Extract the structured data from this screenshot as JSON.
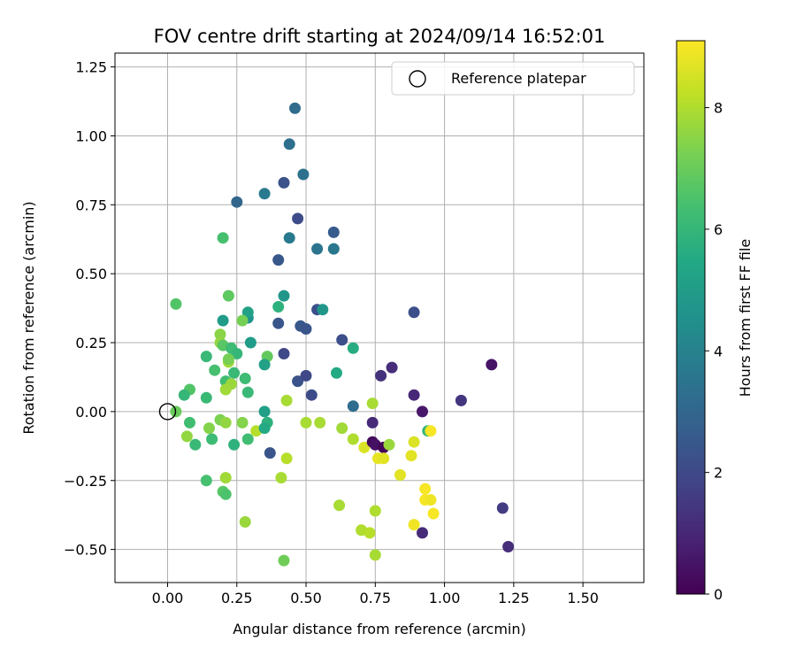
{
  "chart_data": {
    "type": "scatter",
    "title": "FOV centre drift starting at 2024/09/14 16:52:01",
    "xlabel": "Angular distance from reference (arcmin)",
    "ylabel": "Rotation from reference (arcmin)",
    "xlim": [
      -0.19,
      1.72
    ],
    "ylim": [
      -0.62,
      1.3
    ],
    "xticks": [
      0.0,
      0.25,
      0.5,
      0.75,
      1.0,
      1.25,
      1.5
    ],
    "xtick_labels": [
      "0.00",
      "0.25",
      "0.50",
      "0.75",
      "1.00",
      "1.25",
      "1.50"
    ],
    "yticks": [
      -0.5,
      -0.25,
      0.0,
      0.25,
      0.5,
      0.75,
      1.0,
      1.25
    ],
    "ytick_labels": [
      "−0.50",
      "−0.25",
      "0.00",
      "0.25",
      "0.50",
      "0.75",
      "1.00",
      "1.25"
    ],
    "grid": true,
    "legend_position": "top-right",
    "legend_label": "Reference platepar",
    "reference_point": [
      0.0,
      0.0
    ],
    "colorbar": {
      "label": "Hours from first FF file",
      "range": [
        0,
        9.1
      ],
      "ticks": [
        0,
        2,
        4,
        6,
        8
      ],
      "tick_labels": [
        "0",
        "2",
        "4",
        "6",
        "8"
      ],
      "colormap": "viridis"
    },
    "points": [
      [
        0.46,
        1.1,
        3.2
      ],
      [
        0.44,
        0.97,
        3.3
      ],
      [
        0.49,
        0.86,
        3.4
      ],
      [
        0.42,
        0.83,
        2.3
      ],
      [
        0.25,
        0.76,
        3.0
      ],
      [
        0.35,
        0.79,
        3.7
      ],
      [
        0.47,
        0.7,
        2.1
      ],
      [
        0.44,
        0.63,
        3.7
      ],
      [
        0.4,
        0.55,
        2.5
      ],
      [
        0.54,
        0.59,
        3.5
      ],
      [
        0.6,
        0.65,
        2.6
      ],
      [
        0.6,
        0.59,
        3.6
      ],
      [
        0.2,
        0.63,
        6.4
      ],
      [
        0.03,
        0.39,
        6.6
      ],
      [
        0.22,
        0.42,
        6.8
      ],
      [
        0.2,
        0.33,
        5.0
      ],
      [
        0.29,
        0.34,
        4.6
      ],
      [
        0.29,
        0.36,
        5.2
      ],
      [
        0.27,
        0.33,
        7.2
      ],
      [
        0.42,
        0.42,
        4.8
      ],
      [
        0.4,
        0.38,
        5.8
      ],
      [
        0.4,
        0.32,
        2.4
      ],
      [
        0.48,
        0.31,
        2.5
      ],
      [
        0.5,
        0.3,
        2.4
      ],
      [
        0.54,
        0.37,
        2.2
      ],
      [
        0.56,
        0.37,
        4.8
      ],
      [
        0.89,
        0.36,
        2.2
      ],
      [
        0.63,
        0.26,
        2.2
      ],
      [
        0.67,
        0.23,
        5.6
      ],
      [
        0.19,
        0.28,
        7.5
      ],
      [
        0.19,
        0.25,
        7.6
      ],
      [
        0.2,
        0.24,
        6.7
      ],
      [
        0.23,
        0.23,
        6.2
      ],
      [
        0.25,
        0.21,
        6.0
      ],
      [
        0.3,
        0.25,
        5.0
      ],
      [
        0.14,
        0.2,
        6.1
      ],
      [
        0.22,
        0.18,
        7.8
      ],
      [
        0.22,
        0.19,
        7.2
      ],
      [
        0.36,
        0.2,
        6.9
      ],
      [
        0.35,
        0.17,
        5.2
      ],
      [
        0.42,
        0.21,
        2.0
      ],
      [
        0.47,
        0.11,
        2.3
      ],
      [
        0.5,
        0.13,
        2.0
      ],
      [
        0.52,
        0.06,
        2.1
      ],
      [
        0.61,
        0.14,
        5.5
      ],
      [
        0.77,
        0.13,
        1.3
      ],
      [
        0.81,
        0.16,
        1.2
      ],
      [
        1.17,
        0.17,
        0.5
      ],
      [
        0.17,
        0.15,
        6.4
      ],
      [
        0.21,
        0.11,
        6.3
      ],
      [
        0.24,
        0.14,
        6.1
      ],
      [
        0.23,
        0.1,
        7.7
      ],
      [
        0.21,
        0.08,
        7.8
      ],
      [
        0.28,
        0.12,
        6.2
      ],
      [
        0.29,
        0.07,
        6.1
      ],
      [
        0.08,
        0.08,
        6.6
      ],
      [
        0.06,
        0.06,
        6.0
      ],
      [
        0.14,
        0.05,
        6.1
      ],
      [
        0.43,
        0.04,
        7.9
      ],
      [
        0.89,
        0.06,
        1.0
      ],
      [
        1.06,
        0.04,
        1.4
      ],
      [
        0.67,
        0.02,
        3.2
      ],
      [
        0.74,
        0.03,
        7.9
      ],
      [
        0.92,
        0.0,
        0.6
      ],
      [
        0.03,
        0.0,
        7.0
      ],
      [
        0.35,
        0.0,
        5.1
      ],
      [
        0.08,
        -0.04,
        6.3
      ],
      [
        0.19,
        -0.03,
        7.3
      ],
      [
        0.21,
        -0.04,
        7.6
      ],
      [
        0.27,
        -0.04,
        7.4
      ],
      [
        0.36,
        -0.04,
        5.8
      ],
      [
        0.5,
        -0.04,
        7.9
      ],
      [
        0.55,
        -0.04,
        7.9
      ],
      [
        0.74,
        -0.04,
        1.1
      ],
      [
        0.15,
        -0.06,
        7.4
      ],
      [
        0.07,
        -0.09,
        7.6
      ],
      [
        0.32,
        -0.07,
        8.1
      ],
      [
        0.35,
        -0.06,
        5.5
      ],
      [
        0.63,
        -0.06,
        7.8
      ],
      [
        0.94,
        -0.07,
        5.9
      ],
      [
        0.95,
        -0.07,
        9.0
      ],
      [
        0.1,
        -0.12,
        6.1
      ],
      [
        0.16,
        -0.1,
        6.2
      ],
      [
        0.24,
        -0.12,
        5.8
      ],
      [
        0.29,
        -0.1,
        6.3
      ],
      [
        0.37,
        -0.15,
        2.4
      ],
      [
        0.43,
        -0.17,
        8.1
      ],
      [
        0.67,
        -0.1,
        8.0
      ],
      [
        0.71,
        -0.13,
        8.6
      ],
      [
        0.74,
        -0.11,
        0.2
      ],
      [
        0.75,
        -0.12,
        0.4
      ],
      [
        0.78,
        -0.13,
        0.1
      ],
      [
        0.8,
        -0.12,
        7.7
      ],
      [
        0.76,
        -0.17,
        8.8
      ],
      [
        0.78,
        -0.17,
        8.7
      ],
      [
        0.88,
        -0.16,
        8.7
      ],
      [
        0.89,
        -0.11,
        8.6
      ],
      [
        0.84,
        -0.23,
        8.7
      ],
      [
        0.14,
        -0.25,
        6.4
      ],
      [
        0.21,
        -0.24,
        7.8
      ],
      [
        0.2,
        -0.29,
        6.7
      ],
      [
        0.21,
        -0.3,
        6.5
      ],
      [
        0.41,
        -0.24,
        7.9
      ],
      [
        0.93,
        -0.28,
        9.0
      ],
      [
        0.93,
        -0.32,
        9.0
      ],
      [
        0.95,
        -0.32,
        8.9
      ],
      [
        0.96,
        -0.37,
        9.0
      ],
      [
        0.62,
        -0.34,
        7.9
      ],
      [
        0.75,
        -0.36,
        8.0
      ],
      [
        0.28,
        -0.4,
        7.7
      ],
      [
        0.7,
        -0.43,
        8.0
      ],
      [
        0.73,
        -0.44,
        8.1
      ],
      [
        0.89,
        -0.41,
        8.9
      ],
      [
        0.92,
        -0.44,
        1.1
      ],
      [
        1.21,
        -0.35,
        1.6
      ],
      [
        1.23,
        -0.49,
        1.2
      ],
      [
        0.42,
        -0.54,
        7.1
      ],
      [
        0.75,
        -0.52,
        7.9
      ]
    ]
  }
}
